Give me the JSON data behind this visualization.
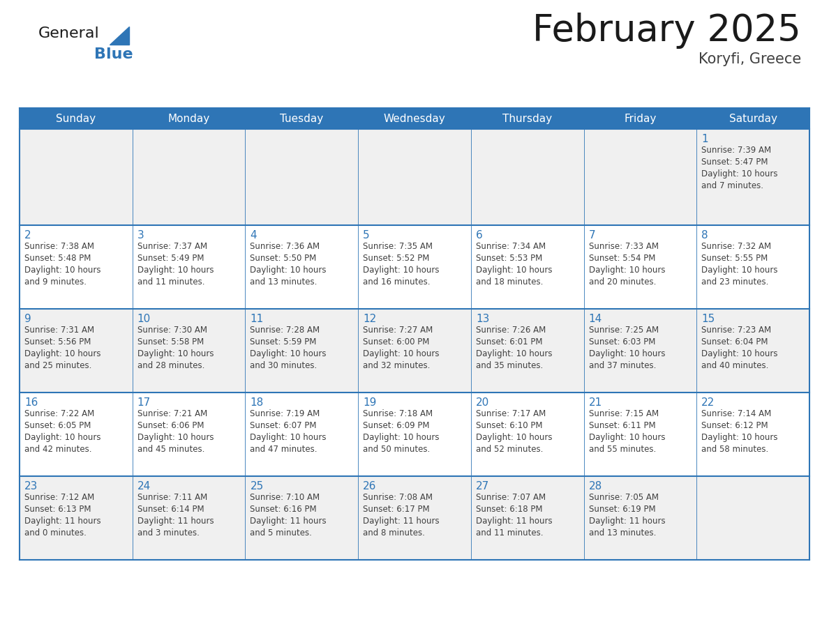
{
  "title": "February 2025",
  "subtitle": "Koryfi, Greece",
  "header_bg": "#2E75B6",
  "header_text_color": "#FFFFFF",
  "days_of_week": [
    "Sunday",
    "Monday",
    "Tuesday",
    "Wednesday",
    "Thursday",
    "Friday",
    "Saturday"
  ],
  "cell_bg_white": "#FFFFFF",
  "cell_bg_gray": "#F0F0F0",
  "grid_line_color": "#2E75B6",
  "day_num_color": "#2E75B6",
  "day_text_color": "#404040",
  "title_color": "#1a1a1a",
  "subtitle_color": "#404040",
  "logo_general_color": "#1a1a1a",
  "logo_blue_color": "#2E75B6",
  "calendar": [
    [
      null,
      null,
      null,
      null,
      null,
      null,
      {
        "day": 1,
        "sunrise": "7:39 AM",
        "sunset": "5:47 PM",
        "daylight": "10 hours and 7 minutes."
      }
    ],
    [
      {
        "day": 2,
        "sunrise": "7:38 AM",
        "sunset": "5:48 PM",
        "daylight": "10 hours and 9 minutes."
      },
      {
        "day": 3,
        "sunrise": "7:37 AM",
        "sunset": "5:49 PM",
        "daylight": "10 hours and 11 minutes."
      },
      {
        "day": 4,
        "sunrise": "7:36 AM",
        "sunset": "5:50 PM",
        "daylight": "10 hours and 13 minutes."
      },
      {
        "day": 5,
        "sunrise": "7:35 AM",
        "sunset": "5:52 PM",
        "daylight": "10 hours and 16 minutes."
      },
      {
        "day": 6,
        "sunrise": "7:34 AM",
        "sunset": "5:53 PM",
        "daylight": "10 hours and 18 minutes."
      },
      {
        "day": 7,
        "sunrise": "7:33 AM",
        "sunset": "5:54 PM",
        "daylight": "10 hours and 20 minutes."
      },
      {
        "day": 8,
        "sunrise": "7:32 AM",
        "sunset": "5:55 PM",
        "daylight": "10 hours and 23 minutes."
      }
    ],
    [
      {
        "day": 9,
        "sunrise": "7:31 AM",
        "sunset": "5:56 PM",
        "daylight": "10 hours and 25 minutes."
      },
      {
        "day": 10,
        "sunrise": "7:30 AM",
        "sunset": "5:58 PM",
        "daylight": "10 hours and 28 minutes."
      },
      {
        "day": 11,
        "sunrise": "7:28 AM",
        "sunset": "5:59 PM",
        "daylight": "10 hours and 30 minutes."
      },
      {
        "day": 12,
        "sunrise": "7:27 AM",
        "sunset": "6:00 PM",
        "daylight": "10 hours and 32 minutes."
      },
      {
        "day": 13,
        "sunrise": "7:26 AM",
        "sunset": "6:01 PM",
        "daylight": "10 hours and 35 minutes."
      },
      {
        "day": 14,
        "sunrise": "7:25 AM",
        "sunset": "6:03 PM",
        "daylight": "10 hours and 37 minutes."
      },
      {
        "day": 15,
        "sunrise": "7:23 AM",
        "sunset": "6:04 PM",
        "daylight": "10 hours and 40 minutes."
      }
    ],
    [
      {
        "day": 16,
        "sunrise": "7:22 AM",
        "sunset": "6:05 PM",
        "daylight": "10 hours and 42 minutes."
      },
      {
        "day": 17,
        "sunrise": "7:21 AM",
        "sunset": "6:06 PM",
        "daylight": "10 hours and 45 minutes."
      },
      {
        "day": 18,
        "sunrise": "7:19 AM",
        "sunset": "6:07 PM",
        "daylight": "10 hours and 47 minutes."
      },
      {
        "day": 19,
        "sunrise": "7:18 AM",
        "sunset": "6:09 PM",
        "daylight": "10 hours and 50 minutes."
      },
      {
        "day": 20,
        "sunrise": "7:17 AM",
        "sunset": "6:10 PM",
        "daylight": "10 hours and 52 minutes."
      },
      {
        "day": 21,
        "sunrise": "7:15 AM",
        "sunset": "6:11 PM",
        "daylight": "10 hours and 55 minutes."
      },
      {
        "day": 22,
        "sunrise": "7:14 AM",
        "sunset": "6:12 PM",
        "daylight": "10 hours and 58 minutes."
      }
    ],
    [
      {
        "day": 23,
        "sunrise": "7:12 AM",
        "sunset": "6:13 PM",
        "daylight": "11 hours and 0 minutes."
      },
      {
        "day": 24,
        "sunrise": "7:11 AM",
        "sunset": "6:14 PM",
        "daylight": "11 hours and 3 minutes."
      },
      {
        "day": 25,
        "sunrise": "7:10 AM",
        "sunset": "6:16 PM",
        "daylight": "11 hours and 5 minutes."
      },
      {
        "day": 26,
        "sunrise": "7:08 AM",
        "sunset": "6:17 PM",
        "daylight": "11 hours and 8 minutes."
      },
      {
        "day": 27,
        "sunrise": "7:07 AM",
        "sunset": "6:18 PM",
        "daylight": "11 hours and 11 minutes."
      },
      {
        "day": 28,
        "sunrise": "7:05 AM",
        "sunset": "6:19 PM",
        "daylight": "11 hours and 13 minutes."
      },
      null
    ]
  ]
}
